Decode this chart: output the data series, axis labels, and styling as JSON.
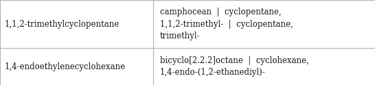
{
  "rows": [
    {
      "col1": "1,1,2-trimethylcyclopentane",
      "col2": "camphocean  |  cyclopentane,\n1,1,2-trimethyl-  |  cyclopentane,\ntrimethyl-"
    },
    {
      "col1": "1,4-endoethylenecyclohexane",
      "col2": "bicyclo[2.2.2]octane  |  cyclohexane,\n1,4-endo-(1,2-ethanediyl)-"
    }
  ],
  "col_split": 0.408,
  "background_color": "#ffffff",
  "border_color": "#b0b0b0",
  "text_color": "#1a1a1a",
  "font_size": 8.5,
  "row_split": 0.435,
  "figwidth": 5.46,
  "figheight": 1.24,
  "dpi": 100
}
